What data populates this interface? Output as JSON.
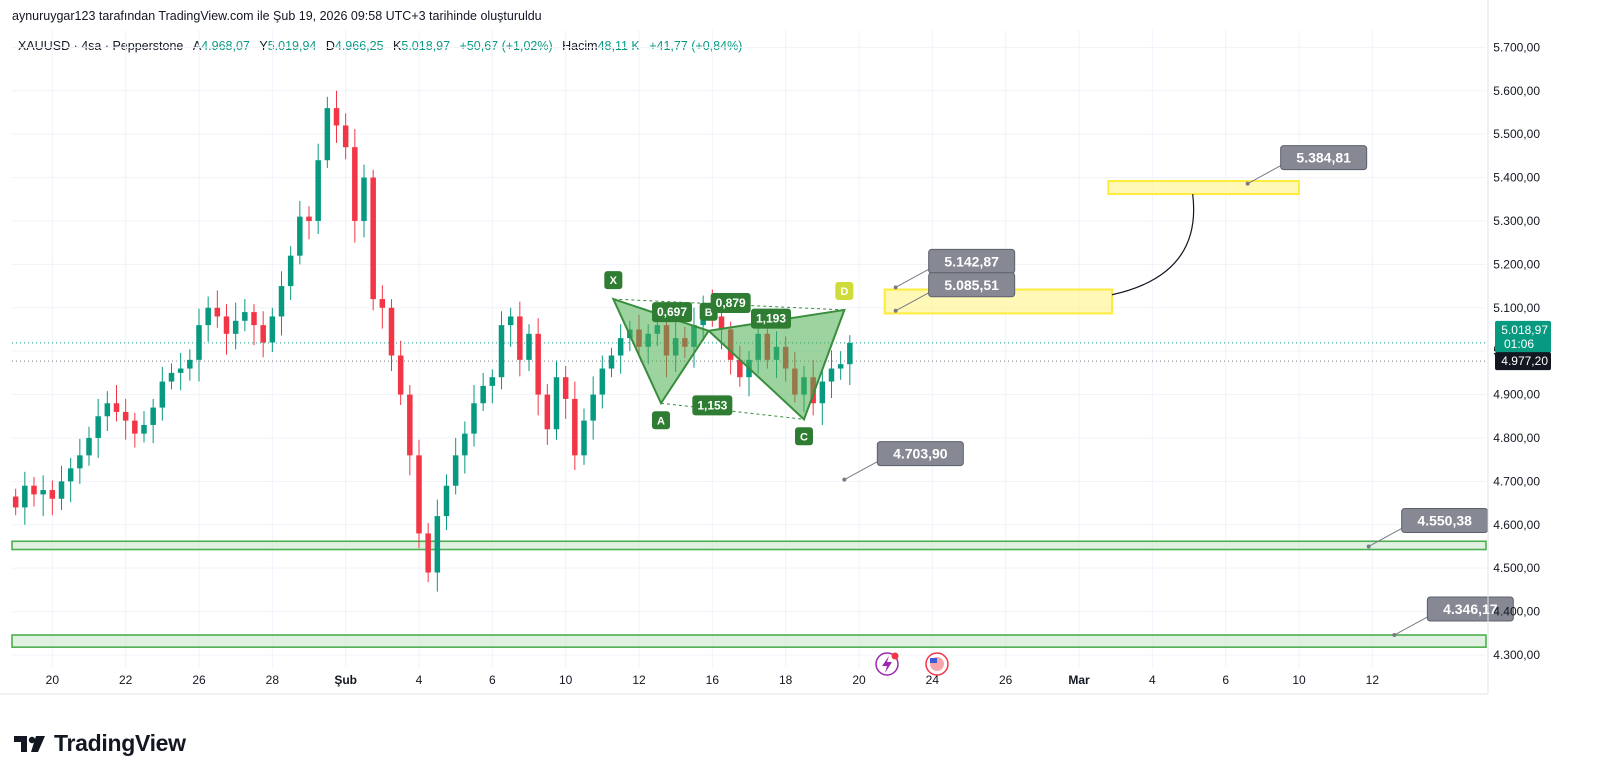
{
  "attribution": "aynuruygar123 tarafından TradingView.com ile Şub 19, 2026 09:58 UTC+3 tarihinde oluşturuldu",
  "legend": {
    "symbol": "XAUUSD · 4sa · Pepperstone",
    "open_label": "A",
    "open": "4.968,07",
    "high_label": "Y",
    "high": "5.019,94",
    "low_label": "D",
    "low": "4.966,25",
    "close_label": "K",
    "close": "5.018,97",
    "change": "+50,67 (+1,02%)",
    "volume_label": "Hacim",
    "volume": "48,11 K",
    "volume_change": "+41,77 (+0,84%)"
  },
  "brand": {
    "name": "TradingView"
  },
  "colors": {
    "up": "#089981",
    "down": "#f23645",
    "pattern": "#4caf50",
    "zone_yellow": "#ffeb3b",
    "callout": "#787b86",
    "price_tag": "#131722"
  },
  "chart_data": {
    "type": "candlestick",
    "y_axis": {
      "ticks": [
        4300,
        4400,
        4500,
        4600,
        4700,
        4800,
        4900,
        5000,
        5100,
        5200,
        5300,
        5400,
        5500,
        5600,
        5700
      ],
      "tick_labels": [
        "4.300,00",
        "4.400,00",
        "4.500,00",
        "4.600,00",
        "4.700,00",
        "4.800,00",
        "4.900,00",
        "5.000,00",
        "5.100,00",
        "5.200,00",
        "5.300,00",
        "5.400,00",
        "5.500,00",
        "5.600,00",
        "5.700,00"
      ],
      "range": [
        4270,
        5740
      ]
    },
    "x_axis": {
      "ticks": [
        {
          "d": 20,
          "label": "20",
          "bold": false
        },
        {
          "d": 22,
          "label": "22",
          "bold": false
        },
        {
          "d": 24,
          "label": "26",
          "bold": false
        },
        {
          "d": 26,
          "label": "28",
          "bold": false
        },
        {
          "d": 28,
          "label": "Şub",
          "bold": true
        },
        {
          "d": 30,
          "label": "4",
          "bold": false
        },
        {
          "d": 32,
          "label": "6",
          "bold": false
        },
        {
          "d": 34,
          "label": "10",
          "bold": false
        },
        {
          "d": 36,
          "label": "12",
          "bold": false
        },
        {
          "d": 38,
          "label": "16",
          "bold": false
        },
        {
          "d": 40,
          "label": "18",
          "bold": false
        },
        {
          "d": 42,
          "label": "20",
          "bold": false
        },
        {
          "d": 44,
          "label": "24",
          "bold": false
        },
        {
          "d": 46,
          "label": "26",
          "bold": false
        },
        {
          "d": 48,
          "label": "Mar",
          "bold": true
        },
        {
          "d": 50,
          "label": "4",
          "bold": false
        },
        {
          "d": 52,
          "label": "6",
          "bold": false
        },
        {
          "d": 54,
          "label": "10",
          "bold": false
        },
        {
          "d": 56,
          "label": "12",
          "bold": false
        }
      ],
      "range": [
        18.9,
        59.1
      ]
    },
    "closes": [
      4640,
      4690,
      4670,
      4680,
      4660,
      4700,
      4730,
      4760,
      4800,
      4850,
      4880,
      4860,
      4840,
      4810,
      4830,
      4870,
      4930,
      4950,
      4960,
      4980,
      5060,
      5100,
      5080,
      5040,
      5070,
      5090,
      5060,
      5020,
      5080,
      5150,
      5220,
      5310,
      5300,
      5440,
      5560,
      5520,
      5470,
      5300,
      5400,
      5120,
      5100,
      4990,
      4900,
      4760,
      4580,
      4490,
      4620,
      4690,
      4760,
      4810,
      4880,
      4920,
      4940,
      5060,
      5080,
      4980,
      5040,
      4900,
      4820,
      4940,
      4890,
      4760,
      4840,
      4900,
      4960,
      4990,
      5030,
      5050,
      5010,
      5040,
      5060,
      4990,
      5030,
      5010,
      5060,
      5100,
      5080,
      5050,
      4980,
      4940,
      4980,
      5040,
      4980,
      5010,
      4960,
      4900,
      4940,
      4880,
      4930,
      4960,
      4970,
      5018.97
    ],
    "patterns": {
      "points": [
        {
          "label": "X",
          "d": 35.3,
          "price": 5120
        },
        {
          "label": "A",
          "d": 36.6,
          "price": 4880
        },
        {
          "label": "B",
          "d": 37.9,
          "price": 5047
        },
        {
          "label": "C",
          "d": 40.5,
          "price": 4843
        },
        {
          "label": "D",
          "d": 41.6,
          "price": 5095
        }
      ],
      "ratios": [
        {
          "value": "0,697",
          "d": 36.9,
          "price": 5090
        },
        {
          "value": "0,879",
          "d": 38.5,
          "price": 5111
        },
        {
          "value": "1,193",
          "d": 39.6,
          "price": 5075
        },
        {
          "value": "1,153",
          "d": 38.0,
          "price": 4875
        }
      ]
    },
    "zones": [
      {
        "name": "yellow-target",
        "d_from": 48.8,
        "d_to": 54.0,
        "p_from": 5362,
        "p_to": 5392,
        "fill": "#fff59d"
      },
      {
        "name": "yellow-prz",
        "d_from": 42.7,
        "d_to": 48.9,
        "p_from": 5087,
        "p_to": 5142,
        "fill": "#fff59d"
      }
    ],
    "green_lines": [
      {
        "p_from": 4543,
        "p_to": 4562
      },
      {
        "p_from": 4318,
        "p_to": 4346
      }
    ],
    "callouts": [
      {
        "label": "5.384,81",
        "d": 53.5,
        "price": 5386
      },
      {
        "label": "5.142,87",
        "d": 43.9,
        "price": 5147
      },
      {
        "label": "5.085,51",
        "d": 43.9,
        "price": 5093
      },
      {
        "label": "4.703,90",
        "d": 42.5,
        "price": 4704
      },
      {
        "label": "4.550,38",
        "d": 56.8,
        "price": 4550
      },
      {
        "label": "4.346,17",
        "d": 57.5,
        "price": 4346
      }
    ],
    "price_tags": [
      {
        "label": "5.018,97",
        "sub": "01:06",
        "price": 5018.97,
        "color": "#089981"
      },
      {
        "label": "4.977,20",
        "sub": "",
        "price": 4977.2,
        "color": "#131722"
      }
    ],
    "reference_lines": [
      5018.97,
      4977.2
    ]
  }
}
